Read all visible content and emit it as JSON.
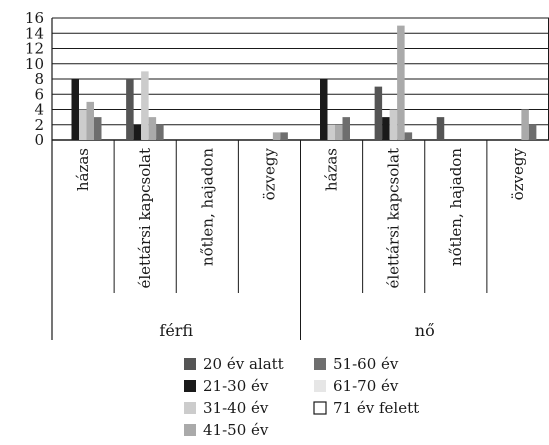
{
  "chart_data": {
    "type": "bar",
    "ylim": [
      0,
      16
    ],
    "yticks": [
      0,
      2,
      4,
      6,
      8,
      10,
      12,
      14,
      16
    ],
    "grid": true,
    "legend_position": "bottom",
    "groups": [
      {
        "label": "férfi",
        "categories": [
          "házas",
          "élettársi kapcsolat",
          "nőtlen, hajadon",
          "özvegy"
        ]
      },
      {
        "label": "nő",
        "categories": [
          "házas",
          "élettársi kapcsolat",
          "nőtlen, hajadon",
          "özvegy"
        ]
      }
    ],
    "categories": [
      "házas",
      "élettársi kapcsolat",
      "nőtlen, hajadon",
      "özvegy",
      "házas",
      "élettársi kapcsolat",
      "nőtlen, hajadon",
      "özvegy"
    ],
    "series": [
      {
        "name": "20 év alatt",
        "color": "#555555",
        "values": [
          0,
          8,
          0,
          0,
          0,
          7,
          3,
          0
        ]
      },
      {
        "name": "21-30 év",
        "color": "#1a1a1a",
        "values": [
          8,
          2,
          0,
          0,
          8,
          3,
          0,
          0
        ]
      },
      {
        "name": "31-40 év",
        "color": "#cccccc",
        "values": [
          4,
          9,
          0,
          0,
          2,
          4,
          0,
          0
        ]
      },
      {
        "name": "41-50 év",
        "color": "#aaaaaa",
        "values": [
          5,
          3,
          0,
          1,
          2,
          15,
          0,
          4
        ]
      },
      {
        "name": "51-60 év",
        "color": "#6e6e6e",
        "values": [
          3,
          2,
          0,
          1,
          3,
          1,
          0,
          2
        ]
      },
      {
        "name": "61-70 év",
        "color": "#e6e6e6",
        "values": [
          0,
          0,
          0,
          0,
          0,
          0,
          0,
          0
        ]
      },
      {
        "name": "71 év felett",
        "color": "#ffffff",
        "values": [
          0,
          0,
          0,
          0,
          0,
          0,
          0,
          0
        ]
      }
    ]
  }
}
